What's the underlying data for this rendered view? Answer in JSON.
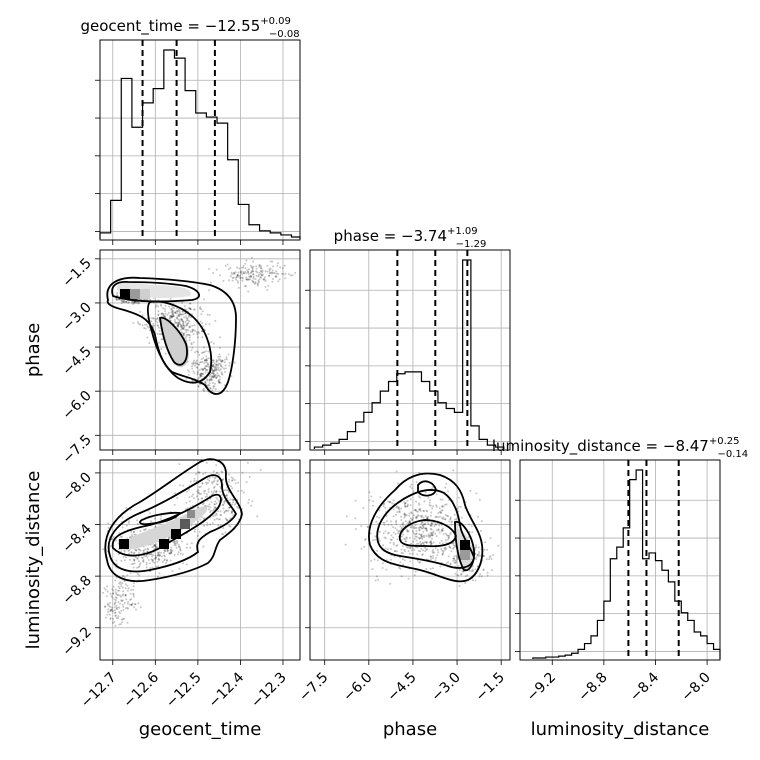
{
  "chart_data": {
    "type": "corner",
    "parameters": [
      {
        "name": "geocent_time",
        "title": {
          "prefix": "geocent_time = ",
          "value": "−12.55",
          "upper": "+0.09",
          "lower": "−0.08"
        },
        "range": [
          -12.73,
          -12.26
        ],
        "ticks": [
          -12.7,
          -12.6,
          -12.5,
          -12.4,
          -12.3
        ],
        "tick_labels": [
          "−12.7",
          "−12.6",
          "−12.5",
          "−12.4",
          "−12.3"
        ],
        "quantiles": [
          -12.63,
          -12.55,
          -12.46
        ],
        "hist": {
          "edges": [
            -12.73,
            -12.705,
            -12.68,
            -12.655,
            -12.63,
            -12.605,
            -12.58,
            -12.555,
            -12.53,
            -12.505,
            -12.48,
            -12.455,
            -12.43,
            -12.405,
            -12.38,
            -12.355,
            -12.33,
            -12.305,
            -12.28,
            -12.26
          ],
          "counts": [
            0.03,
            0.19,
            0.79,
            0.55,
            0.67,
            0.74,
            0.93,
            0.89,
            0.73,
            0.62,
            0.6,
            0.57,
            0.39,
            0.17,
            0.07,
            0.04,
            0.03,
            0.02,
            0.01
          ]
        }
      },
      {
        "name": "phase",
        "title": {
          "prefix": "phase = ",
          "value": "−3.74",
          "upper": "+1.09",
          "lower": "−1.29"
        },
        "range": [
          -8.0,
          -1.2
        ],
        "ticks": [
          -7.5,
          -6.0,
          -4.5,
          -3.0,
          -1.5
        ],
        "tick_labels": [
          "−7.5",
          "−6.0",
          "−4.5",
          "−3.0",
          "−1.5"
        ],
        "quantiles": [
          -5.03,
          -3.74,
          -2.65
        ],
        "hist": {
          "edges": [
            -7.85,
            -7.57,
            -7.29,
            -7.01,
            -6.73,
            -6.45,
            -6.17,
            -5.89,
            -5.61,
            -5.33,
            -5.05,
            -4.77,
            -4.49,
            -4.21,
            -3.93,
            -3.65,
            -3.37,
            -3.09,
            -2.81,
            -2.53,
            -2.25,
            -1.97,
            -1.69,
            -1.41
          ],
          "counts": [
            0.01,
            0.02,
            0.03,
            0.05,
            0.09,
            0.14,
            0.19,
            0.24,
            0.3,
            0.35,
            0.39,
            0.4,
            0.4,
            0.35,
            0.3,
            0.24,
            0.21,
            0.19,
            0.98,
            0.12,
            0.05,
            0.02,
            0.01
          ]
        }
      },
      {
        "name": "luminosity_distance",
        "title": {
          "prefix": "luminosity_distance = ",
          "value": "−8.47",
          "upper": "+0.25",
          "lower": "−0.14"
        },
        "range": [
          -9.45,
          -7.9
        ],
        "ticks": [
          -9.2,
          -8.8,
          -8.4,
          -8.0
        ],
        "tick_labels": [
          "−9.2",
          "−8.8",
          "−8.4",
          "−8.0"
        ],
        "quantiles": [
          -8.61,
          -8.47,
          -8.22
        ],
        "hist": {
          "edges": [
            -9.35,
            -9.3,
            -9.25,
            -9.2,
            -9.15,
            -9.1,
            -9.05,
            -9.0,
            -8.95,
            -8.9,
            -8.85,
            -8.8,
            -8.75,
            -8.7,
            -8.65,
            -8.6,
            -8.55,
            -8.5,
            -8.45,
            -8.4,
            -8.35,
            -8.3,
            -8.25,
            -8.2,
            -8.15,
            -8.1,
            -8.05,
            -8.0,
            -7.95,
            -7.9
          ],
          "counts": [
            0.005,
            0.005,
            0.01,
            0.01,
            0.015,
            0.02,
            0.03,
            0.05,
            0.08,
            0.12,
            0.2,
            0.3,
            0.52,
            0.58,
            0.68,
            0.93,
            0.98,
            0.52,
            0.55,
            0.51,
            0.46,
            0.4,
            0.3,
            0.24,
            0.2,
            0.14,
            0.12,
            0.08,
            0.05
          ]
        }
      }
    ],
    "pairs": [
      {
        "x": "geocent_time",
        "y": "phase"
      },
      {
        "x": "geocent_time",
        "y": "luminosity_distance"
      },
      {
        "x": "phase",
        "y": "luminosity_distance"
      }
    ],
    "grid": true
  }
}
